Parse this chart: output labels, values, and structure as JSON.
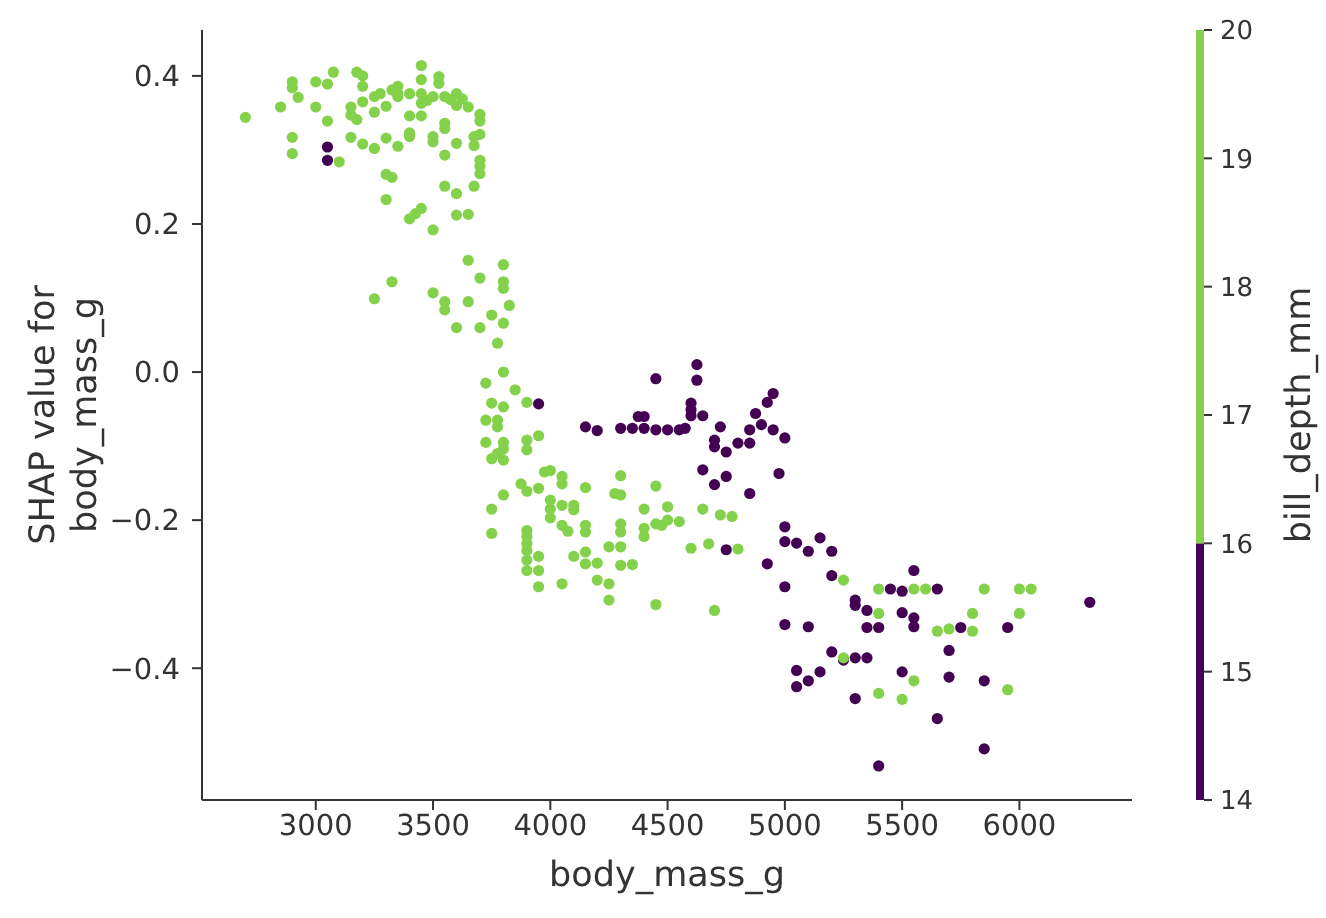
{
  "chart_data": {
    "type": "scatter",
    "xlabel": "body_mass_g",
    "ylabel": "SHAP value for\nbody_mass_g",
    "clabel": "bill_depth_mm",
    "xlim": [
      2515,
      6480
    ],
    "ylim": [
      -0.578,
      0.462
    ],
    "xticks": [
      3000,
      3500,
      4000,
      4500,
      5000,
      5500,
      6000
    ],
    "yticks": [
      {
        "value": -0.4,
        "label": "−0.4"
      },
      {
        "value": -0.2,
        "label": "−0.2"
      },
      {
        "value": 0,
        "label": "0.0"
      },
      {
        "value": 0.2,
        "label": "0.2"
      },
      {
        "value": 0.4,
        "label": "0.4"
      }
    ],
    "clim": [
      14,
      20
    ],
    "cticks": [
      14,
      15,
      16,
      17,
      18,
      19,
      20
    ],
    "marker": "circle",
    "series": [
      {
        "color": "#440154",
        "x": [
          3050,
          3050,
          3950,
          4625,
          4625,
          4450,
          4600,
          4600,
          4600,
          4650,
          4150,
          4200,
          4300,
          4350,
          4375,
          4400,
          4400,
          4450,
          4500,
          4550,
          4575,
          4725,
          4700,
          4700,
          4750,
          4800,
          4850,
          4875,
          4900,
          4850,
          4950,
          4925,
          4950,
          5000,
          4650,
          4750,
          4700,
          4850,
          4975,
          5000,
          5000,
          4925,
          5000,
          4750,
          5050,
          5100,
          5150,
          5200,
          5200,
          5000,
          5100,
          5050,
          5050,
          5100,
          5150,
          5200,
          5250,
          5300,
          5350,
          5300,
          5300,
          5350,
          5400,
          5350,
          5450,
          5500,
          5500,
          5550,
          5550,
          5550,
          5650,
          5300,
          5500,
          5700,
          5700,
          5850,
          5650,
          5850,
          5400,
          5750,
          5950,
          6300
        ],
        "values": [
          0.304,
          0.286,
          -0.043,
          0.01,
          -0.011,
          -0.009,
          -0.042,
          -0.051,
          -0.059,
          -0.059,
          -0.074,
          -0.079,
          -0.076,
          -0.076,
          -0.06,
          -0.06,
          -0.076,
          -0.078,
          -0.078,
          -0.078,
          -0.076,
          -0.074,
          -0.092,
          -0.101,
          -0.108,
          -0.096,
          -0.096,
          -0.056,
          -0.071,
          -0.078,
          -0.029,
          -0.041,
          -0.078,
          -0.089,
          -0.132,
          -0.141,
          -0.152,
          -0.164,
          -0.137,
          -0.209,
          -0.229,
          -0.259,
          -0.29,
          -0.24,
          -0.231,
          -0.242,
          -0.224,
          -0.242,
          -0.275,
          -0.341,
          -0.344,
          -0.403,
          -0.425,
          -0.417,
          -0.405,
          -0.378,
          -0.389,
          -0.386,
          -0.386,
          -0.308,
          -0.315,
          -0.322,
          -0.345,
          -0.345,
          -0.293,
          -0.296,
          -0.325,
          -0.268,
          -0.332,
          -0.344,
          -0.293,
          -0.441,
          -0.405,
          -0.412,
          -0.376,
          -0.417,
          -0.468,
          -0.509,
          -0.532,
          -0.345,
          -0.345,
          -0.311
        ]
      },
      {
        "color": "#84d24b",
        "x": [
          2700,
          2850,
          2900,
          2900,
          2925,
          2900,
          2900,
          3000,
          3050,
          3075,
          3000,
          3050,
          3100,
          3150,
          3150,
          3175,
          3175,
          3200,
          3200,
          3150,
          3200,
          3200,
          3250,
          3250,
          3250,
          3275,
          3300,
          3300,
          3325,
          3300,
          3300,
          3325,
          3350,
          3350,
          3350,
          3350,
          3400,
          3400,
          3400,
          3400,
          3450,
          3450,
          3450,
          3450,
          3450,
          3400,
          3425,
          3450,
          3500,
          3500,
          3500,
          3475,
          3500,
          3525,
          3525,
          3550,
          3550,
          3550,
          3550,
          3550,
          3600,
          3600,
          3575,
          3600,
          3625,
          3600,
          3650,
          3675,
          3700,
          3700,
          3700,
          3675,
          3700,
          3700,
          3700,
          3675,
          3600,
          3650,
          3650,
          3800,
          3800,
          3800,
          3700,
          3325,
          3250,
          3500,
          3550,
          3550,
          3650,
          3750,
          3825,
          3800,
          3600,
          3700,
          3775,
          3800,
          3725,
          3850,
          3750,
          3800,
          3900,
          3725,
          3775,
          3775,
          3725,
          3800,
          3800,
          3775,
          3800,
          3750,
          3900,
          3900,
          3950,
          3800,
          3750,
          3750,
          3875,
          3900,
          3950,
          3975,
          4000,
          4050,
          4050,
          4000,
          4000,
          4000,
          4050,
          4100,
          4100,
          4050,
          4075,
          3900,
          3900,
          3900,
          3900,
          3900,
          3900,
          3950,
          3950,
          3950,
          4050,
          4100,
          4150,
          4150,
          4200,
          4200,
          4250,
          4250,
          4150,
          4150,
          4150,
          4250,
          4300,
          4300,
          4350,
          4275,
          4300,
          4300,
          4300,
          4300,
          4400,
          4400,
          4400,
          4450,
          4450,
          4475,
          4500,
          4500,
          4550,
          4600,
          4675,
          4650,
          4725,
          4775,
          4800,
          4700,
          4450,
          5250,
          5400,
          5400,
          5550,
          5600,
          5850,
          6000,
          6050,
          5800,
          6000,
          5650,
          5700,
          5800,
          5550,
          5400,
          5500,
          5950,
          5250
        ],
        "values": [
          0.344,
          0.358,
          0.392,
          0.384,
          0.371,
          0.317,
          0.295,
          0.392,
          0.389,
          0.405,
          0.358,
          0.339,
          0.284,
          0.358,
          0.347,
          0.341,
          0.405,
          0.4,
          0.386,
          0.317,
          0.308,
          0.365,
          0.351,
          0.302,
          0.372,
          0.376,
          0.316,
          0.267,
          0.263,
          0.233,
          0.359,
          0.381,
          0.372,
          0.386,
          0.376,
          0.305,
          0.376,
          0.346,
          0.318,
          0.323,
          0.414,
          0.395,
          0.376,
          0.363,
          0.346,
          0.207,
          0.214,
          0.221,
          0.192,
          0.318,
          0.311,
          0.367,
          0.372,
          0.399,
          0.39,
          0.372,
          0.336,
          0.329,
          0.293,
          0.251,
          0.241,
          0.309,
          0.368,
          0.376,
          0.369,
          0.36,
          0.358,
          0.318,
          0.348,
          0.339,
          0.321,
          0.306,
          0.286,
          0.278,
          0.268,
          0.251,
          0.212,
          0.213,
          0.151,
          0.145,
          0.122,
          0.113,
          0.127,
          0.122,
          0.099,
          0.107,
          0.095,
          0.084,
          0.095,
          0.077,
          0.09,
          0.066,
          0.06,
          0.06,
          0.039,
          0,
          -0.015,
          -0.024,
          -0.042,
          -0.047,
          -0.041,
          -0.065,
          -0.065,
          -0.074,
          -0.095,
          -0.095,
          -0.104,
          -0.11,
          -0.119,
          -0.117,
          -0.092,
          -0.105,
          -0.086,
          -0.166,
          -0.185,
          -0.218,
          -0.151,
          -0.161,
          -0.157,
          -0.135,
          -0.133,
          -0.141,
          -0.151,
          -0.173,
          -0.185,
          -0.197,
          -0.18,
          -0.18,
          -0.186,
          -0.207,
          -0.215,
          -0.214,
          -0.222,
          -0.232,
          -0.241,
          -0.254,
          -0.268,
          -0.249,
          -0.268,
          -0.29,
          -0.286,
          -0.249,
          -0.243,
          -0.259,
          -0.258,
          -0.281,
          -0.286,
          -0.308,
          -0.207,
          -0.216,
          -0.156,
          -0.236,
          -0.236,
          -0.261,
          -0.26,
          -0.164,
          -0.166,
          -0.14,
          -0.205,
          -0.216,
          -0.185,
          -0.211,
          -0.222,
          -0.154,
          -0.205,
          -0.207,
          -0.182,
          -0.2,
          -0.202,
          -0.238,
          -0.232,
          -0.185,
          -0.193,
          -0.195,
          -0.239,
          -0.322,
          -0.314,
          -0.281,
          -0.293,
          -0.326,
          -0.293,
          -0.293,
          -0.293,
          -0.293,
          -0.293,
          -0.326,
          -0.326,
          -0.35,
          -0.347,
          -0.35,
          -0.417,
          -0.434,
          -0.442,
          -0.429,
          -0.386
        ]
      }
    ]
  }
}
